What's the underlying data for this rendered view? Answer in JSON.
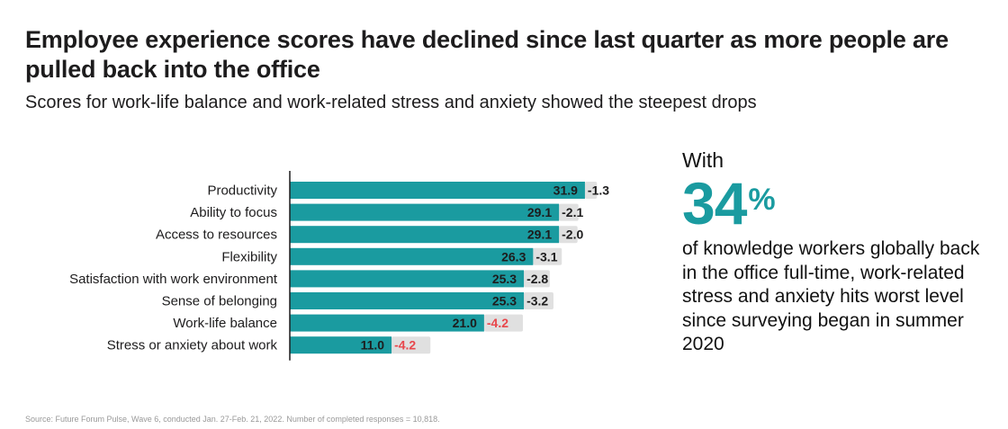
{
  "header": {
    "title": "Employee experience scores have declined since last quarter as more people are pulled back into the office",
    "subtitle": "Scores for work-life balance and work-related stress and anxiety showed the steepest drops"
  },
  "callout": {
    "lead": "With",
    "number": "34",
    "unit": "%",
    "body": "of knowledge workers globally back in the office full-time, work-related stress and anxiety hits worst level since surveying began in summer 2020"
  },
  "footer": {
    "source": "Source: Future Forum Pulse, Wave 6, conducted Jan. 27-Feb. 21, 2022. Number of completed responses = 10,818."
  },
  "colors": {
    "bar": "#1a9ba0",
    "change_bg": "#e0e0e0",
    "negative_highlight": "#e8474c",
    "text": "#1d1c1d"
  },
  "chart_data": {
    "type": "bar",
    "orientation": "horizontal",
    "title": "Employee experience scores have declined since last quarter as more people are pulled back into the office",
    "subtitle": "Scores for work-life balance and work-related stress and anxiety showed the steepest drops",
    "xlabel": "",
    "ylabel": "",
    "grid": false,
    "categories": [
      "Productivity",
      "Ability to focus",
      "Access to resources",
      "Flexibility",
      "Satisfaction with work environment",
      "Sense of belonging",
      "Work-life balance",
      "Stress or anxiety about work"
    ],
    "series": [
      {
        "name": "Current score",
        "values": [
          31.9,
          29.1,
          29.1,
          26.3,
          25.3,
          25.3,
          21.0,
          11.0
        ],
        "labels": [
          "31.9",
          "29.1",
          "29.1",
          "26.3",
          "25.3",
          "25.3",
          "21.0",
          "11.0"
        ]
      },
      {
        "name": "Change since last quarter",
        "values": [
          -1.3,
          -2.1,
          -2.0,
          -3.1,
          -2.8,
          -3.2,
          -4.2,
          -4.2
        ],
        "labels": [
          "-1.3",
          "-2.1",
          "-2.0",
          "-3.1",
          "-2.8",
          "-3.2",
          "-4.2",
          "-4.2"
        ]
      }
    ],
    "highlighted_changes": [
      6,
      7
    ]
  }
}
